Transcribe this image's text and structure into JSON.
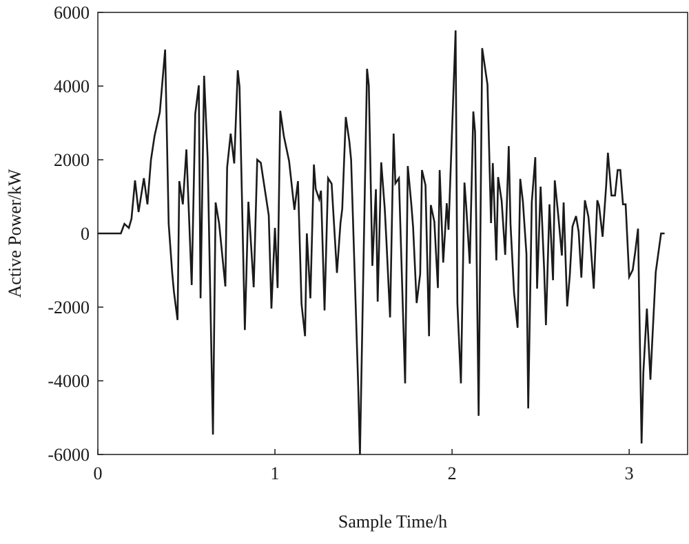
{
  "chart_data": {
    "type": "line",
    "xlabel": "Sample Time/h",
    "ylabel": "Active Power/kW",
    "xlim": [
      0,
      3.33
    ],
    "ylim": [
      -6000,
      6000
    ],
    "xticks": [
      0,
      1,
      2,
      3
    ],
    "yticks": [
      -6000,
      -4000,
      -2000,
      0,
      2000,
      4000,
      6000
    ],
    "grid": false,
    "series": [
      {
        "name": "Active Power",
        "color": "#1a1a1a",
        "x": [
          0,
          0.13,
          0.15,
          0.175,
          0.19,
          0.21,
          0.23,
          0.26,
          0.28,
          0.3,
          0.32,
          0.35,
          0.38,
          0.4,
          0.42,
          0.43,
          0.45,
          0.46,
          0.48,
          0.5,
          0.53,
          0.55,
          0.57,
          0.58,
          0.6,
          0.62,
          0.65,
          0.665,
          0.685,
          0.72,
          0.73,
          0.75,
          0.77,
          0.79,
          0.8,
          0.83,
          0.85,
          0.88,
          0.9,
          0.92,
          0.965,
          0.98,
          1.0,
          1.015,
          1.03,
          1.05,
          1.08,
          1.11,
          1.13,
          1.15,
          1.17,
          1.18,
          1.2,
          1.22,
          1.23,
          1.25,
          1.26,
          1.28,
          1.3,
          1.32,
          1.35,
          1.37,
          1.38,
          1.4,
          1.42,
          1.43,
          1.47,
          1.48,
          1.52,
          1.53,
          1.55,
          1.57,
          1.58,
          1.6,
          1.62,
          1.63,
          1.65,
          1.67,
          1.68,
          1.7,
          1.735,
          1.75,
          1.77,
          1.78,
          1.8,
          1.82,
          1.83,
          1.85,
          1.87,
          1.88,
          1.9,
          1.92,
          1.93,
          1.95,
          1.97,
          1.98,
          2.02,
          2.03,
          2.05,
          2.07,
          2.08,
          2.1,
          2.12,
          2.13,
          2.15,
          2.17,
          2.2,
          2.22,
          2.23,
          2.25,
          2.26,
          2.28,
          2.3,
          2.32,
          2.33,
          2.35,
          2.37,
          2.385,
          2.4,
          2.42,
          2.43,
          2.45,
          2.47,
          2.48,
          2.5,
          2.52,
          2.53,
          2.55,
          2.57,
          2.58,
          2.6,
          2.62,
          2.63,
          2.65,
          2.665,
          2.68,
          2.7,
          2.715,
          2.73,
          2.75,
          2.77,
          2.78,
          2.8,
          2.82,
          2.83,
          2.85,
          2.87,
          2.88,
          2.9,
          2.92,
          2.935,
          2.95,
          2.965,
          2.98,
          3.0,
          3.02,
          3.035,
          3.05,
          3.07,
          3.08,
          3.1,
          3.12,
          3.13,
          3.15,
          3.18,
          3.2
        ],
        "values": [
          0,
          0,
          260,
          150,
          400,
          1440,
          580,
          1500,
          790,
          2000,
          2640,
          3290,
          4990,
          260,
          -1080,
          -1600,
          -2350,
          1420,
          790,
          2280,
          -1400,
          3250,
          4020,
          -1760,
          4280,
          2040,
          -5460,
          840,
          260,
          -1440,
          1790,
          2710,
          1900,
          4430,
          3980,
          -2620,
          860,
          -1460,
          2000,
          1920,
          490,
          -2040,
          150,
          -1480,
          3330,
          2650,
          1960,
          640,
          1420,
          -1910,
          -2790,
          0,
          -1760,
          1870,
          1210,
          930,
          1160,
          -2090,
          1500,
          1350,
          -1070,
          280,
          670,
          3160,
          2500,
          2000,
          -4130,
          -6000,
          4470,
          4020,
          -880,
          1200,
          -1850,
          1930,
          670,
          -260,
          -2280,
          2710,
          1360,
          1500,
          -4070,
          1830,
          790,
          170,
          -1890,
          -1100,
          1720,
          1310,
          -2790,
          770,
          320,
          -1480,
          1720,
          -790,
          820,
          100,
          5510,
          -1890,
          -4070,
          1380,
          730,
          -820,
          3310,
          2750,
          -4950,
          5030,
          4040,
          280,
          1910,
          -730,
          1530,
          880,
          -580,
          2370,
          260,
          -1610,
          -2560,
          1480,
          860,
          -560,
          -4750,
          840,
          2070,
          -1500,
          1270,
          -990,
          -2490,
          790,
          -1270,
          1440,
          470,
          -600,
          840,
          -1980,
          -1120,
          190,
          470,
          40,
          -1200,
          900,
          450,
          -130,
          -1500,
          900,
          750,
          -90,
          1290,
          2190,
          1030,
          1030,
          1720,
          1720,
          790,
          790,
          -1180,
          -990,
          -470,
          130,
          -5700,
          -3780,
          -2040,
          -3970,
          -2950,
          -1050,
          0,
          0
        ]
      }
    ]
  }
}
